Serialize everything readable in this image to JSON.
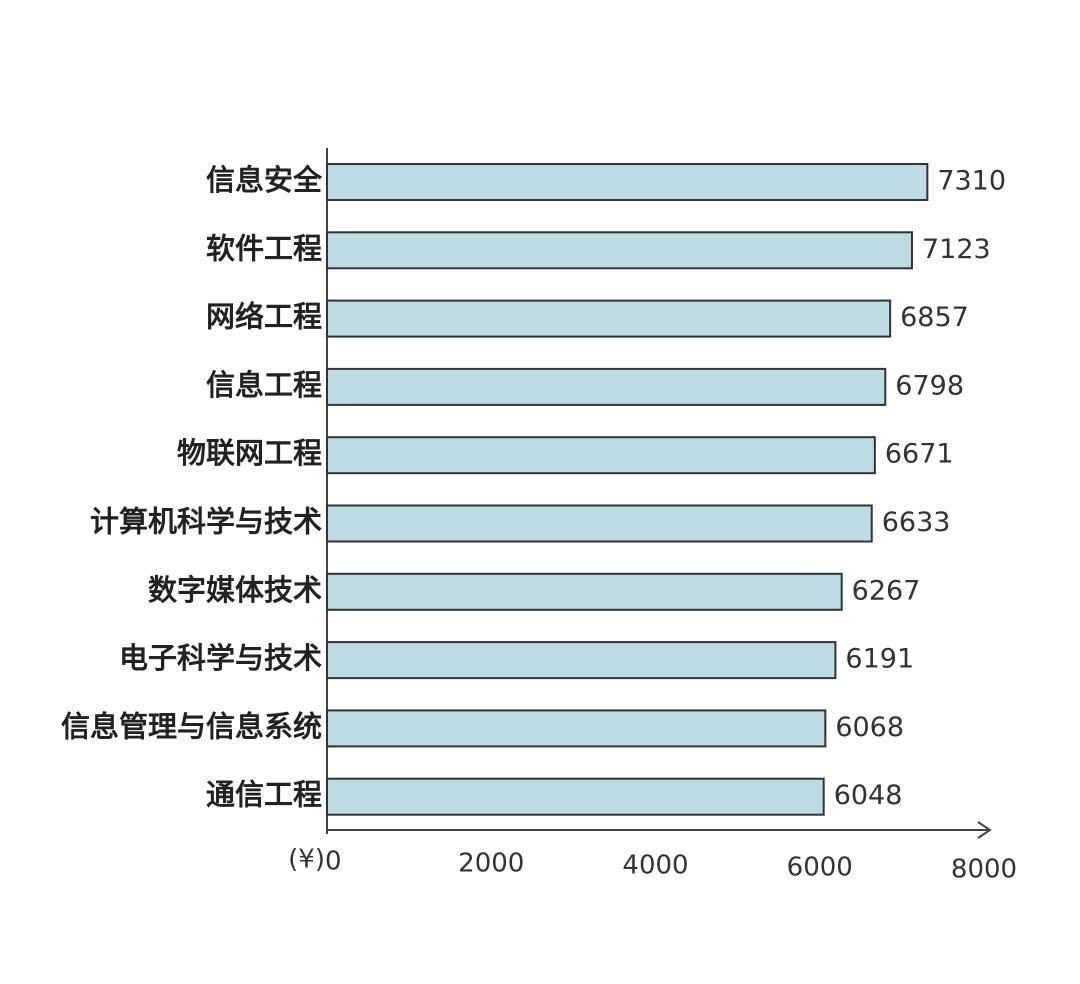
{
  "chart_data": {
    "type": "bar",
    "orientation": "horizontal",
    "categories": [
      "信息安全",
      "软件工程",
      "网络工程",
      "信息工程",
      "物联网工程",
      "计算机科学与技术",
      "数字媒体技术",
      "电子科学与技术",
      "信息管理与信息系统",
      "通信工程"
    ],
    "values": [
      7310,
      7123,
      6857,
      6798,
      6671,
      6633,
      6267,
      6191,
      6068,
      6048
    ],
    "color": "#bcdbe3",
    "x_label": "(¥)",
    "xlim": [
      0,
      8000
    ],
    "xticks": [
      0,
      2000,
      4000,
      6000,
      8000
    ],
    "grid": false
  }
}
